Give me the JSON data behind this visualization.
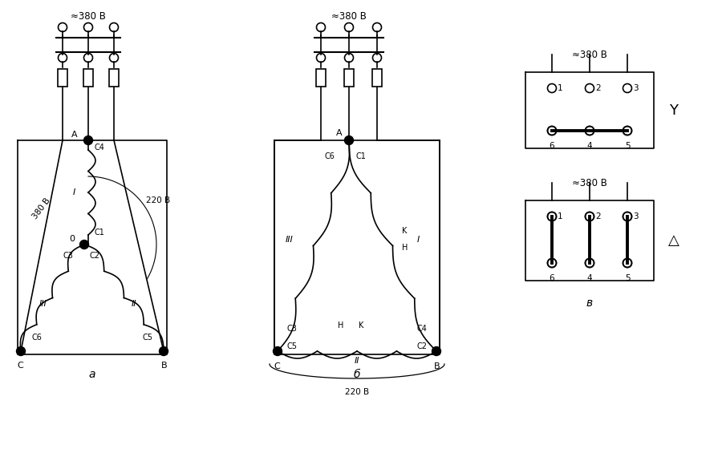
{
  "bg_color": "#ffffff",
  "line_color": "#000000",
  "voltage_380": "≈380 В",
  "voltage_220": "220 В",
  "voltage_380_2": "380 В",
  "label_a": "а",
  "label_b": "б",
  "label_v": "в",
  "figsize": [
    9.0,
    5.6
  ],
  "dpi": 100
}
